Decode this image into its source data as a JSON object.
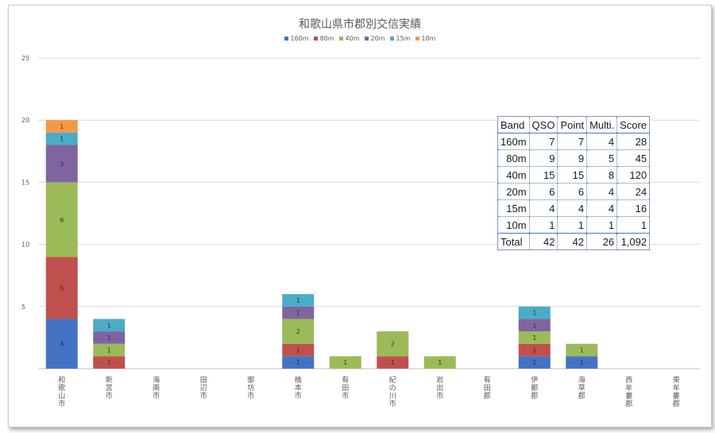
{
  "chart_data": {
    "type": "bar",
    "stacked": true,
    "title": "和歌山県市郡別交信実績",
    "categories": [
      "和歌山市",
      "新宮市",
      "海南市",
      "田辺市",
      "御坊市",
      "橋本市",
      "有田市",
      "紀の川市",
      "岩出市",
      "有田郡",
      "伊都郡",
      "海草郡",
      "西牟婁郡",
      "東牟婁郡"
    ],
    "series": [
      {
        "name": "160m",
        "color": "#4472C4",
        "values": [
          4,
          0,
          0,
          0,
          0,
          1,
          0,
          0,
          0,
          0,
          1,
          1,
          0,
          0
        ]
      },
      {
        "name": "80m",
        "color": "#C0504D",
        "values": [
          5,
          1,
          0,
          0,
          0,
          1,
          0,
          1,
          0,
          0,
          1,
          0,
          0,
          0
        ]
      },
      {
        "name": "40m",
        "color": "#9BBB59",
        "values": [
          6,
          1,
          0,
          0,
          0,
          2,
          1,
          2,
          1,
          0,
          1,
          1,
          0,
          0
        ]
      },
      {
        "name": "20m",
        "color": "#8064A2",
        "values": [
          3,
          1,
          0,
          0,
          0,
          1,
          0,
          0,
          0,
          0,
          1,
          0,
          0,
          0
        ]
      },
      {
        "name": "15m",
        "color": "#4BACC6",
        "values": [
          1,
          1,
          0,
          0,
          0,
          1,
          0,
          0,
          0,
          0,
          1,
          0,
          0,
          0
        ]
      },
      {
        "name": "10m",
        "color": "#F79646",
        "values": [
          1,
          0,
          0,
          0,
          0,
          0,
          0,
          0,
          0,
          0,
          0,
          0,
          0,
          0
        ]
      }
    ],
    "yticks": [
      0,
      5,
      10,
      15,
      20,
      25
    ],
    "ylim": [
      0,
      25
    ],
    "legend_position": "top",
    "grid": true
  },
  "table": {
    "headers": [
      "Band",
      "QSO",
      "Point",
      "Multi.",
      "Score"
    ],
    "rows": [
      [
        "160m",
        "7",
        "7",
        "4",
        "28"
      ],
      [
        "80m",
        "9",
        "9",
        "5",
        "45"
      ],
      [
        "40m",
        "15",
        "15",
        "8",
        "120"
      ],
      [
        "20m",
        "6",
        "6",
        "4",
        "24"
      ],
      [
        "15m",
        "4",
        "4",
        "4",
        "16"
      ],
      [
        "10m",
        "1",
        "1",
        "1",
        "1"
      ]
    ],
    "total": [
      "Total",
      "42",
      "42",
      "26",
      "1,092"
    ]
  }
}
